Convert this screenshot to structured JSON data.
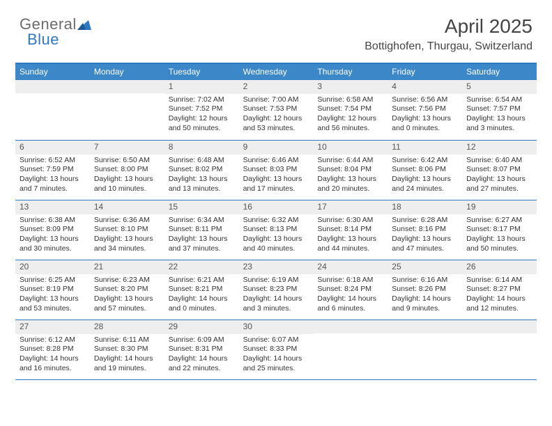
{
  "brand": {
    "part1": "General",
    "part2": "Blue"
  },
  "title": "April 2025",
  "location": "Bottighofen, Thurgau, Switzerland",
  "colors": {
    "header_bg": "#3b87c8",
    "border": "#2f78c2",
    "daynum_bg": "#eeeeee",
    "text": "#333333",
    "brand_gray": "#6b6b6b",
    "brand_blue": "#2f78c2"
  },
  "days_of_week": [
    "Sunday",
    "Monday",
    "Tuesday",
    "Wednesday",
    "Thursday",
    "Friday",
    "Saturday"
  ],
  "weeks": [
    [
      null,
      null,
      {
        "n": "1",
        "sr": "Sunrise: 7:02 AM",
        "ss": "Sunset: 7:52 PM",
        "dl": "Daylight: 12 hours and 50 minutes."
      },
      {
        "n": "2",
        "sr": "Sunrise: 7:00 AM",
        "ss": "Sunset: 7:53 PM",
        "dl": "Daylight: 12 hours and 53 minutes."
      },
      {
        "n": "3",
        "sr": "Sunrise: 6:58 AM",
        "ss": "Sunset: 7:54 PM",
        "dl": "Daylight: 12 hours and 56 minutes."
      },
      {
        "n": "4",
        "sr": "Sunrise: 6:56 AM",
        "ss": "Sunset: 7:56 PM",
        "dl": "Daylight: 13 hours and 0 minutes."
      },
      {
        "n": "5",
        "sr": "Sunrise: 6:54 AM",
        "ss": "Sunset: 7:57 PM",
        "dl": "Daylight: 13 hours and 3 minutes."
      }
    ],
    [
      {
        "n": "6",
        "sr": "Sunrise: 6:52 AM",
        "ss": "Sunset: 7:59 PM",
        "dl": "Daylight: 13 hours and 7 minutes."
      },
      {
        "n": "7",
        "sr": "Sunrise: 6:50 AM",
        "ss": "Sunset: 8:00 PM",
        "dl": "Daylight: 13 hours and 10 minutes."
      },
      {
        "n": "8",
        "sr": "Sunrise: 6:48 AM",
        "ss": "Sunset: 8:02 PM",
        "dl": "Daylight: 13 hours and 13 minutes."
      },
      {
        "n": "9",
        "sr": "Sunrise: 6:46 AM",
        "ss": "Sunset: 8:03 PM",
        "dl": "Daylight: 13 hours and 17 minutes."
      },
      {
        "n": "10",
        "sr": "Sunrise: 6:44 AM",
        "ss": "Sunset: 8:04 PM",
        "dl": "Daylight: 13 hours and 20 minutes."
      },
      {
        "n": "11",
        "sr": "Sunrise: 6:42 AM",
        "ss": "Sunset: 8:06 PM",
        "dl": "Daylight: 13 hours and 24 minutes."
      },
      {
        "n": "12",
        "sr": "Sunrise: 6:40 AM",
        "ss": "Sunset: 8:07 PM",
        "dl": "Daylight: 13 hours and 27 minutes."
      }
    ],
    [
      {
        "n": "13",
        "sr": "Sunrise: 6:38 AM",
        "ss": "Sunset: 8:09 PM",
        "dl": "Daylight: 13 hours and 30 minutes."
      },
      {
        "n": "14",
        "sr": "Sunrise: 6:36 AM",
        "ss": "Sunset: 8:10 PM",
        "dl": "Daylight: 13 hours and 34 minutes."
      },
      {
        "n": "15",
        "sr": "Sunrise: 6:34 AM",
        "ss": "Sunset: 8:11 PM",
        "dl": "Daylight: 13 hours and 37 minutes."
      },
      {
        "n": "16",
        "sr": "Sunrise: 6:32 AM",
        "ss": "Sunset: 8:13 PM",
        "dl": "Daylight: 13 hours and 40 minutes."
      },
      {
        "n": "17",
        "sr": "Sunrise: 6:30 AM",
        "ss": "Sunset: 8:14 PM",
        "dl": "Daylight: 13 hours and 44 minutes."
      },
      {
        "n": "18",
        "sr": "Sunrise: 6:28 AM",
        "ss": "Sunset: 8:16 PM",
        "dl": "Daylight: 13 hours and 47 minutes."
      },
      {
        "n": "19",
        "sr": "Sunrise: 6:27 AM",
        "ss": "Sunset: 8:17 PM",
        "dl": "Daylight: 13 hours and 50 minutes."
      }
    ],
    [
      {
        "n": "20",
        "sr": "Sunrise: 6:25 AM",
        "ss": "Sunset: 8:19 PM",
        "dl": "Daylight: 13 hours and 53 minutes."
      },
      {
        "n": "21",
        "sr": "Sunrise: 6:23 AM",
        "ss": "Sunset: 8:20 PM",
        "dl": "Daylight: 13 hours and 57 minutes."
      },
      {
        "n": "22",
        "sr": "Sunrise: 6:21 AM",
        "ss": "Sunset: 8:21 PM",
        "dl": "Daylight: 14 hours and 0 minutes."
      },
      {
        "n": "23",
        "sr": "Sunrise: 6:19 AM",
        "ss": "Sunset: 8:23 PM",
        "dl": "Daylight: 14 hours and 3 minutes."
      },
      {
        "n": "24",
        "sr": "Sunrise: 6:18 AM",
        "ss": "Sunset: 8:24 PM",
        "dl": "Daylight: 14 hours and 6 minutes."
      },
      {
        "n": "25",
        "sr": "Sunrise: 6:16 AM",
        "ss": "Sunset: 8:26 PM",
        "dl": "Daylight: 14 hours and 9 minutes."
      },
      {
        "n": "26",
        "sr": "Sunrise: 6:14 AM",
        "ss": "Sunset: 8:27 PM",
        "dl": "Daylight: 14 hours and 12 minutes."
      }
    ],
    [
      {
        "n": "27",
        "sr": "Sunrise: 6:12 AM",
        "ss": "Sunset: 8:28 PM",
        "dl": "Daylight: 14 hours and 16 minutes."
      },
      {
        "n": "28",
        "sr": "Sunrise: 6:11 AM",
        "ss": "Sunset: 8:30 PM",
        "dl": "Daylight: 14 hours and 19 minutes."
      },
      {
        "n": "29",
        "sr": "Sunrise: 6:09 AM",
        "ss": "Sunset: 8:31 PM",
        "dl": "Daylight: 14 hours and 22 minutes."
      },
      {
        "n": "30",
        "sr": "Sunrise: 6:07 AM",
        "ss": "Sunset: 8:33 PM",
        "dl": "Daylight: 14 hours and 25 minutes."
      },
      null,
      null,
      null
    ]
  ]
}
